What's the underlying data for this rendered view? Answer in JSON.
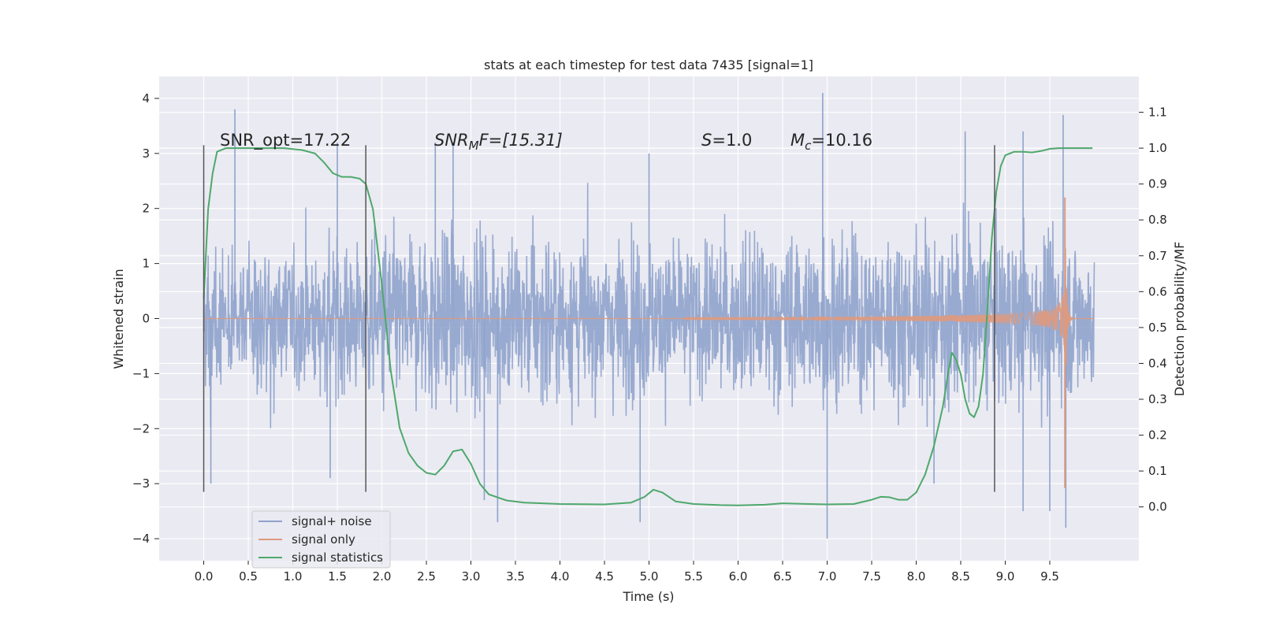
{
  "chart_data": {
    "type": "line",
    "title": "stats at each timestep for test data 7435 [signal=1]",
    "xlabel": "Time (s)",
    "ylabel": "Whitened strain",
    "y2label": "Detection probability/MF",
    "xlim": [
      -0.5,
      10.5
    ],
    "ylim": [
      -4.4,
      4.4
    ],
    "y2lim": [
      -0.15,
      1.2
    ],
    "x_ticks": [
      "0.0",
      "0.5",
      "1.0",
      "1.5",
      "2.0",
      "2.5",
      "3.0",
      "3.5",
      "4.0",
      "4.5",
      "5.0",
      "5.5",
      "6.0",
      "6.5",
      "7.0",
      "7.5",
      "8.0",
      "8.5",
      "9.0",
      "9.5"
    ],
    "y_ticks": [
      "4",
      "3",
      "2",
      "1",
      "0",
      "−1",
      "−2",
      "−3",
      "−4"
    ],
    "y2_ticks": [
      "1.1",
      "1.0",
      "0.9",
      "0.8",
      "0.7",
      "0.6",
      "0.5",
      "0.4",
      "0.3",
      "0.2",
      "0.1",
      "0.0"
    ],
    "grid": true,
    "legend_position": "lower-left",
    "annotations": {
      "snr_opt": "SNR_opt=17.22",
      "snr_mf_main": "SNR",
      "snr_mf_sub": "M",
      "snr_mf_rest": "F=[15.31]",
      "s_main": "S",
      "s_rest": "=1.0",
      "mc_main": "M",
      "mc_sub": "c",
      "mc_rest": "=10.16"
    },
    "vertical_lines": [
      0.0,
      1.82,
      8.88
    ],
    "series": [
      {
        "name": "signal+ noise",
        "color": "#8fa3cc",
        "x_range": [
          0.0,
          10.0
        ],
        "envelope": [
          [
            0.0,
            1.9
          ],
          [
            0.5,
            2.4
          ],
          [
            1.0,
            2.2
          ],
          [
            1.5,
            2.5
          ],
          [
            2.0,
            2.4
          ],
          [
            2.5,
            2.8
          ],
          [
            3.0,
            2.7
          ],
          [
            3.5,
            2.5
          ],
          [
            4.0,
            2.6
          ],
          [
            4.5,
            2.4
          ],
          [
            5.0,
            2.5
          ],
          [
            5.5,
            2.3
          ],
          [
            6.0,
            2.5
          ],
          [
            6.5,
            2.6
          ],
          [
            7.0,
            2.7
          ],
          [
            7.5,
            2.6
          ],
          [
            8.0,
            2.7
          ],
          [
            8.5,
            2.8
          ],
          [
            9.0,
            2.6
          ],
          [
            9.5,
            2.6
          ],
          [
            10.0,
            2.4
          ]
        ],
        "spikes": [
          [
            0.35,
            3.8
          ],
          [
            0.08,
            -3.0
          ],
          [
            1.5,
            3.2
          ],
          [
            1.42,
            -2.9
          ],
          [
            2.6,
            3.2
          ],
          [
            2.8,
            3.2
          ],
          [
            3.3,
            -3.7
          ],
          [
            3.15,
            -3.3
          ],
          [
            4.9,
            -3.7
          ],
          [
            5.0,
            3.0
          ],
          [
            6.95,
            4.1
          ],
          [
            7.0,
            -4.0
          ],
          [
            8.2,
            -3.0
          ],
          [
            8.55,
            3.4
          ],
          [
            9.2,
            -3.5
          ],
          [
            9.5,
            -3.5
          ],
          [
            9.65,
            3.7
          ],
          [
            9.68,
            -3.8
          ],
          [
            9.2,
            3.4
          ]
        ]
      },
      {
        "name": "signal only",
        "color": "#dd9a80",
        "chirp": {
          "t_start": 5.4,
          "t_merger": 9.67,
          "amp_start": 0.02,
          "amp_end": 2.2,
          "t_end": 10.0
        }
      },
      {
        "name": "signal statistics",
        "color": "#4ea86b",
        "axis": "right",
        "x": [
          0.0,
          0.05,
          0.1,
          0.15,
          0.25,
          0.35,
          0.5,
          0.7,
          0.9,
          1.1,
          1.25,
          1.35,
          1.45,
          1.55,
          1.65,
          1.75,
          1.82,
          1.9,
          2.0,
          2.1,
          2.2,
          2.3,
          2.4,
          2.5,
          2.6,
          2.7,
          2.8,
          2.9,
          3.0,
          3.1,
          3.2,
          3.4,
          3.6,
          4.0,
          4.5,
          4.8,
          4.95,
          5.05,
          5.15,
          5.3,
          5.5,
          5.8,
          6.0,
          6.3,
          6.5,
          6.8,
          7.0,
          7.3,
          7.5,
          7.6,
          7.7,
          7.8,
          7.9,
          8.0,
          8.1,
          8.2,
          8.3,
          8.35,
          8.4,
          8.45,
          8.5,
          8.55,
          8.6,
          8.65,
          8.7,
          8.75,
          8.8,
          8.85,
          8.9,
          8.95,
          9.0,
          9.1,
          9.2,
          9.3,
          9.4,
          9.5,
          9.6,
          9.7,
          9.8,
          9.9,
          9.98
        ],
        "values": [
          0.58,
          0.83,
          0.93,
          0.99,
          1.0,
          1.0,
          1.0,
          1.0,
          1.0,
          0.995,
          0.985,
          0.96,
          0.93,
          0.92,
          0.92,
          0.915,
          0.9,
          0.83,
          0.62,
          0.38,
          0.22,
          0.15,
          0.115,
          0.095,
          0.09,
          0.115,
          0.155,
          0.16,
          0.12,
          0.065,
          0.035,
          0.018,
          0.012,
          0.008,
          0.007,
          0.012,
          0.028,
          0.048,
          0.04,
          0.015,
          0.008,
          0.005,
          0.004,
          0.006,
          0.01,
          0.008,
          0.007,
          0.008,
          0.02,
          0.028,
          0.027,
          0.02,
          0.02,
          0.04,
          0.09,
          0.17,
          0.28,
          0.36,
          0.43,
          0.41,
          0.37,
          0.3,
          0.26,
          0.25,
          0.28,
          0.37,
          0.55,
          0.75,
          0.88,
          0.95,
          0.98,
          0.99,
          0.99,
          0.988,
          0.992,
          0.998,
          1.0,
          1.0,
          1.0,
          1.0,
          1.0
        ]
      }
    ]
  }
}
